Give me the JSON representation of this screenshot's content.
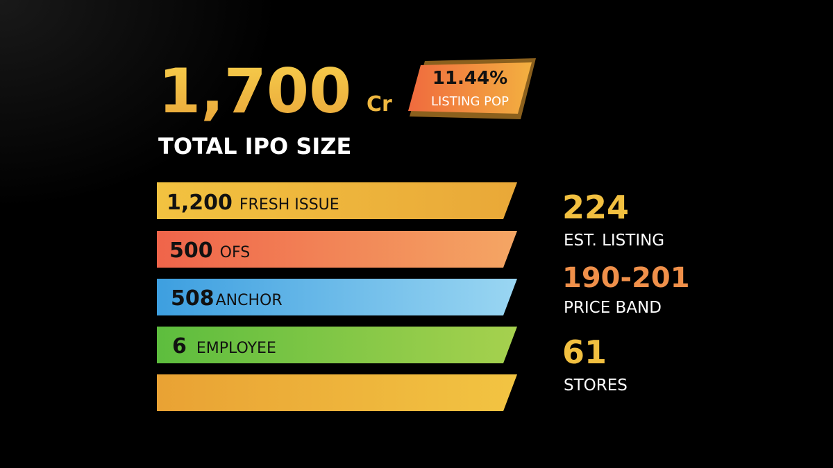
{
  "headline": {
    "value": "1,700",
    "unit": "Cr",
    "label": "TOTAL IPO SIZE"
  },
  "badge": {
    "value": "11.44%",
    "label": "LISTING POP"
  },
  "bars": [
    {
      "value": "1,200",
      "label": "FRESH ISSUE"
    },
    {
      "value": "500",
      "label": "OFS"
    },
    {
      "value": "508",
      "label": "ANCHOR"
    },
    {
      "value": "6",
      "label": "EMPLOYEE"
    }
  ],
  "stats": [
    {
      "value": "224",
      "label": "EST. LISTING"
    },
    {
      "value": "190-201",
      "label": "PRICE BAND"
    },
    {
      "value": "61",
      "label": "STORES"
    }
  ]
}
